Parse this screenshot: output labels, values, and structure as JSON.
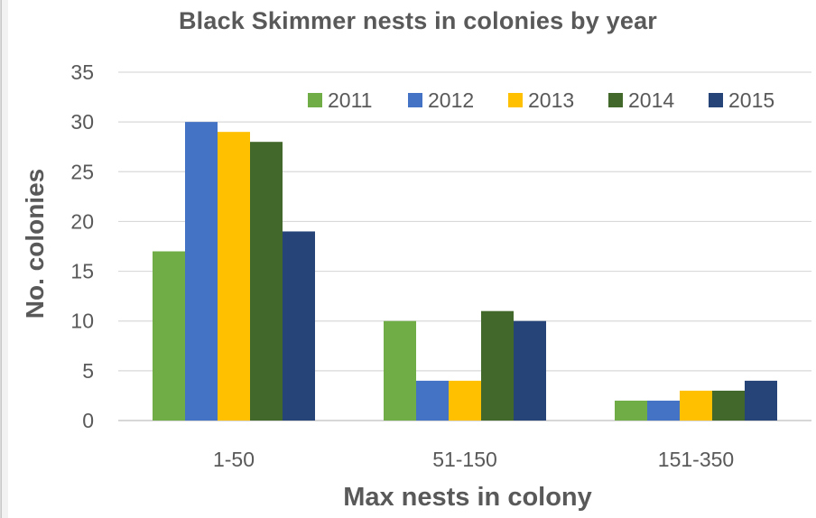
{
  "chart_data": {
    "type": "bar",
    "title": "Black Skimmer nests in colonies by year",
    "xlabel": "Max nests in colony",
    "ylabel": "No. colonies",
    "categories": [
      "1-50",
      "51-150",
      "151-350"
    ],
    "ylim": [
      0,
      35
    ],
    "yticks": [
      0,
      5,
      10,
      15,
      20,
      25,
      30,
      35
    ],
    "grid": true,
    "legend_position": "top-right",
    "series": [
      {
        "name": "2011",
        "color": "#70ad47",
        "values": [
          17,
          10,
          2
        ]
      },
      {
        "name": "2012",
        "color": "#4472c4",
        "values": [
          30,
          4,
          2
        ]
      },
      {
        "name": "2013",
        "color": "#ffc000",
        "values": [
          29,
          4,
          3
        ]
      },
      {
        "name": "2014",
        "color": "#43682b",
        "values": [
          28,
          11,
          3
        ]
      },
      {
        "name": "2015",
        "color": "#264478",
        "values": [
          19,
          10,
          4
        ]
      }
    ]
  }
}
